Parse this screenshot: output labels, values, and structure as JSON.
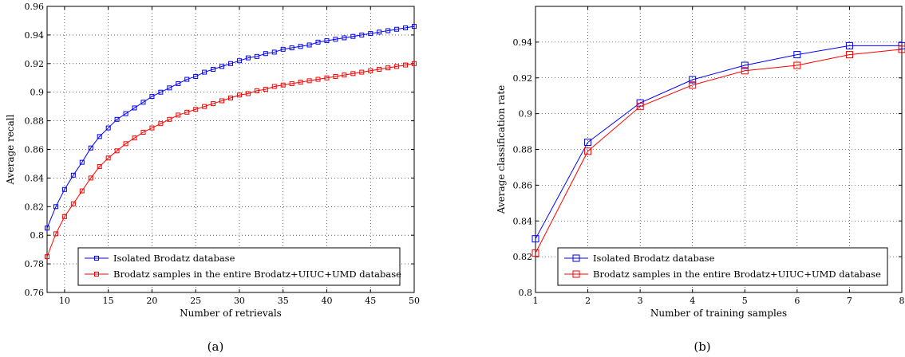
{
  "chart_data": [
    {
      "type": "line",
      "caption": "(a)",
      "xlabel": "Number of retrievals",
      "ylabel": "Average recall",
      "xlim": [
        8,
        50
      ],
      "ylim": [
        0.76,
        0.96
      ],
      "xticks": [
        10,
        15,
        20,
        25,
        30,
        35,
        40,
        45,
        50
      ],
      "yticks": [
        0.76,
        0.78,
        0.8,
        0.82,
        0.84,
        0.86,
        0.88,
        0.9,
        0.92,
        0.94,
        0.96
      ],
      "ytick_labels": [
        "0.76",
        "0.78",
        "0.8",
        "0.82",
        "0.84",
        "0.86",
        "0.88",
        "0.9",
        "0.92",
        "0.94",
        "0.96"
      ],
      "xtick_labels": [
        "10",
        "15",
        "20",
        "25",
        "30",
        "35",
        "40",
        "45",
        "50"
      ],
      "grid": true,
      "legend_position": "bottom-right",
      "x": [
        8,
        9,
        10,
        11,
        12,
        13,
        14,
        15,
        16,
        17,
        18,
        19,
        20,
        21,
        22,
        23,
        24,
        25,
        26,
        27,
        28,
        29,
        30,
        31,
        32,
        33,
        34,
        35,
        36,
        37,
        38,
        39,
        40,
        41,
        42,
        43,
        44,
        45,
        46,
        47,
        48,
        49,
        50
      ],
      "series": [
        {
          "name": "Isolated Brodatz database",
          "color": "#0000ff",
          "marker": "square",
          "values": [
            0.805,
            0.82,
            0.832,
            0.842,
            0.851,
            0.861,
            0.869,
            0.875,
            0.881,
            0.885,
            0.889,
            0.893,
            0.897,
            0.9,
            0.903,
            0.906,
            0.909,
            0.911,
            0.914,
            0.916,
            0.918,
            0.92,
            0.922,
            0.924,
            0.925,
            0.927,
            0.928,
            0.93,
            0.931,
            0.932,
            0.933,
            0.935,
            0.936,
            0.937,
            0.938,
            0.939,
            0.94,
            0.941,
            0.942,
            0.943,
            0.944,
            0.945,
            0.946
          ]
        },
        {
          "name": "Brodatz samples in the entire Brodatz+UIUC+UMD database",
          "color": "#ff0000",
          "marker": "square",
          "values": [
            0.785,
            0.801,
            0.813,
            0.822,
            0.831,
            0.84,
            0.848,
            0.854,
            0.859,
            0.864,
            0.868,
            0.872,
            0.875,
            0.878,
            0.881,
            0.884,
            0.886,
            0.888,
            0.89,
            0.892,
            0.894,
            0.896,
            0.898,
            0.899,
            0.901,
            0.902,
            0.904,
            0.905,
            0.906,
            0.907,
            0.908,
            0.909,
            0.91,
            0.911,
            0.912,
            0.913,
            0.914,
            0.915,
            0.916,
            0.917,
            0.918,
            0.919,
            0.92
          ]
        }
      ]
    },
    {
      "type": "line",
      "caption": "(b)",
      "xlabel": "Number of training samples",
      "ylabel": "Average classification rate",
      "xlim": [
        1,
        8
      ],
      "ylim": [
        0.8,
        0.96
      ],
      "xticks": [
        1,
        2,
        3,
        4,
        5,
        6,
        7,
        8
      ],
      "yticks": [
        0.8,
        0.82,
        0.84,
        0.86,
        0.88,
        0.9,
        0.92,
        0.94
      ],
      "ytick_labels": [
        "0.8",
        "0.82",
        "0.84",
        "0.86",
        "0.88",
        "0.9",
        "0.92",
        "0.94"
      ],
      "xtick_labels": [
        "1",
        "2",
        "3",
        "4",
        "5",
        "6",
        "7",
        "8"
      ],
      "grid": true,
      "legend_position": "bottom-right",
      "x": [
        1,
        2,
        3,
        4,
        5,
        6,
        7,
        8
      ],
      "series": [
        {
          "name": "Isolated Brodatz database",
          "color": "#0000ff",
          "marker": "square",
          "values": [
            0.83,
            0.884,
            0.906,
            0.919,
            0.927,
            0.933,
            0.938,
            0.938
          ]
        },
        {
          "name": "Brodatz samples in the entire Brodatz+UIUC+UMD database",
          "color": "#ff0000",
          "marker": "square",
          "values": [
            0.822,
            0.879,
            0.904,
            0.916,
            0.924,
            0.927,
            0.933,
            0.936
          ]
        }
      ]
    }
  ]
}
